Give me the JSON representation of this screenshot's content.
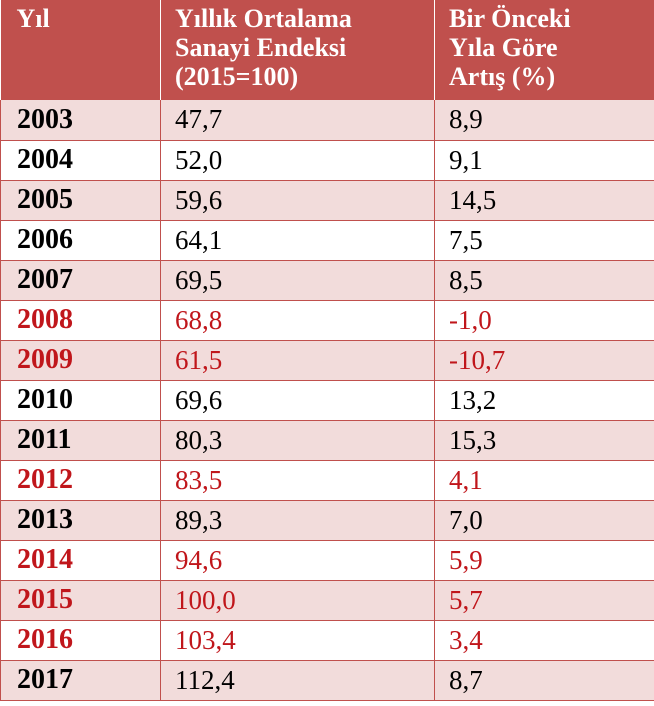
{
  "colors": {
    "header_bg": "#c0504d",
    "band_bg": "#f2dcdb",
    "highlight_text": "#c0161b"
  },
  "table": {
    "headers": [
      {
        "lines": [
          "Yıl"
        ]
      },
      {
        "lines": [
          "Yıllık Ortalama",
          "Sanayi Endeksi",
          "(2015=100)"
        ]
      },
      {
        "lines": [
          "Bir Önceki",
          "Yıla Göre",
          "Artış (%)"
        ]
      }
    ],
    "rows": [
      {
        "year": "2003",
        "index": "47,7",
        "change": "8,9",
        "highlight": false
      },
      {
        "year": "2004",
        "index": "52,0",
        "change": "9,1",
        "highlight": false
      },
      {
        "year": "2005",
        "index": "59,6",
        "change": "14,5",
        "highlight": false
      },
      {
        "year": "2006",
        "index": "64,1",
        "change": "7,5",
        "highlight": false
      },
      {
        "year": "2007",
        "index": "69,5",
        "change": "8,5",
        "highlight": false
      },
      {
        "year": "2008",
        "index": "68,8",
        "change": "-1,0",
        "highlight": true
      },
      {
        "year": "2009",
        "index": "61,5",
        "change": "-10,7",
        "highlight": true
      },
      {
        "year": "2010",
        "index": "69,6",
        "change": "13,2",
        "highlight": false
      },
      {
        "year": "2011",
        "index": "80,3",
        "change": "15,3",
        "highlight": false
      },
      {
        "year": "2012",
        "index": "83,5",
        "change": "4,1",
        "highlight": true
      },
      {
        "year": "2013",
        "index": "89,3",
        "change": "7,0",
        "highlight": false
      },
      {
        "year": "2014",
        "index": "94,6",
        "change": "5,9",
        "highlight": true
      },
      {
        "year": "2015",
        "index": "100,0",
        "change": "5,7",
        "highlight": true
      },
      {
        "year": "2016",
        "index": "103,4",
        "change": "3,4",
        "highlight": true
      },
      {
        "year": "2017",
        "index": "112,4",
        "change": "8,7",
        "highlight": false
      }
    ]
  }
}
